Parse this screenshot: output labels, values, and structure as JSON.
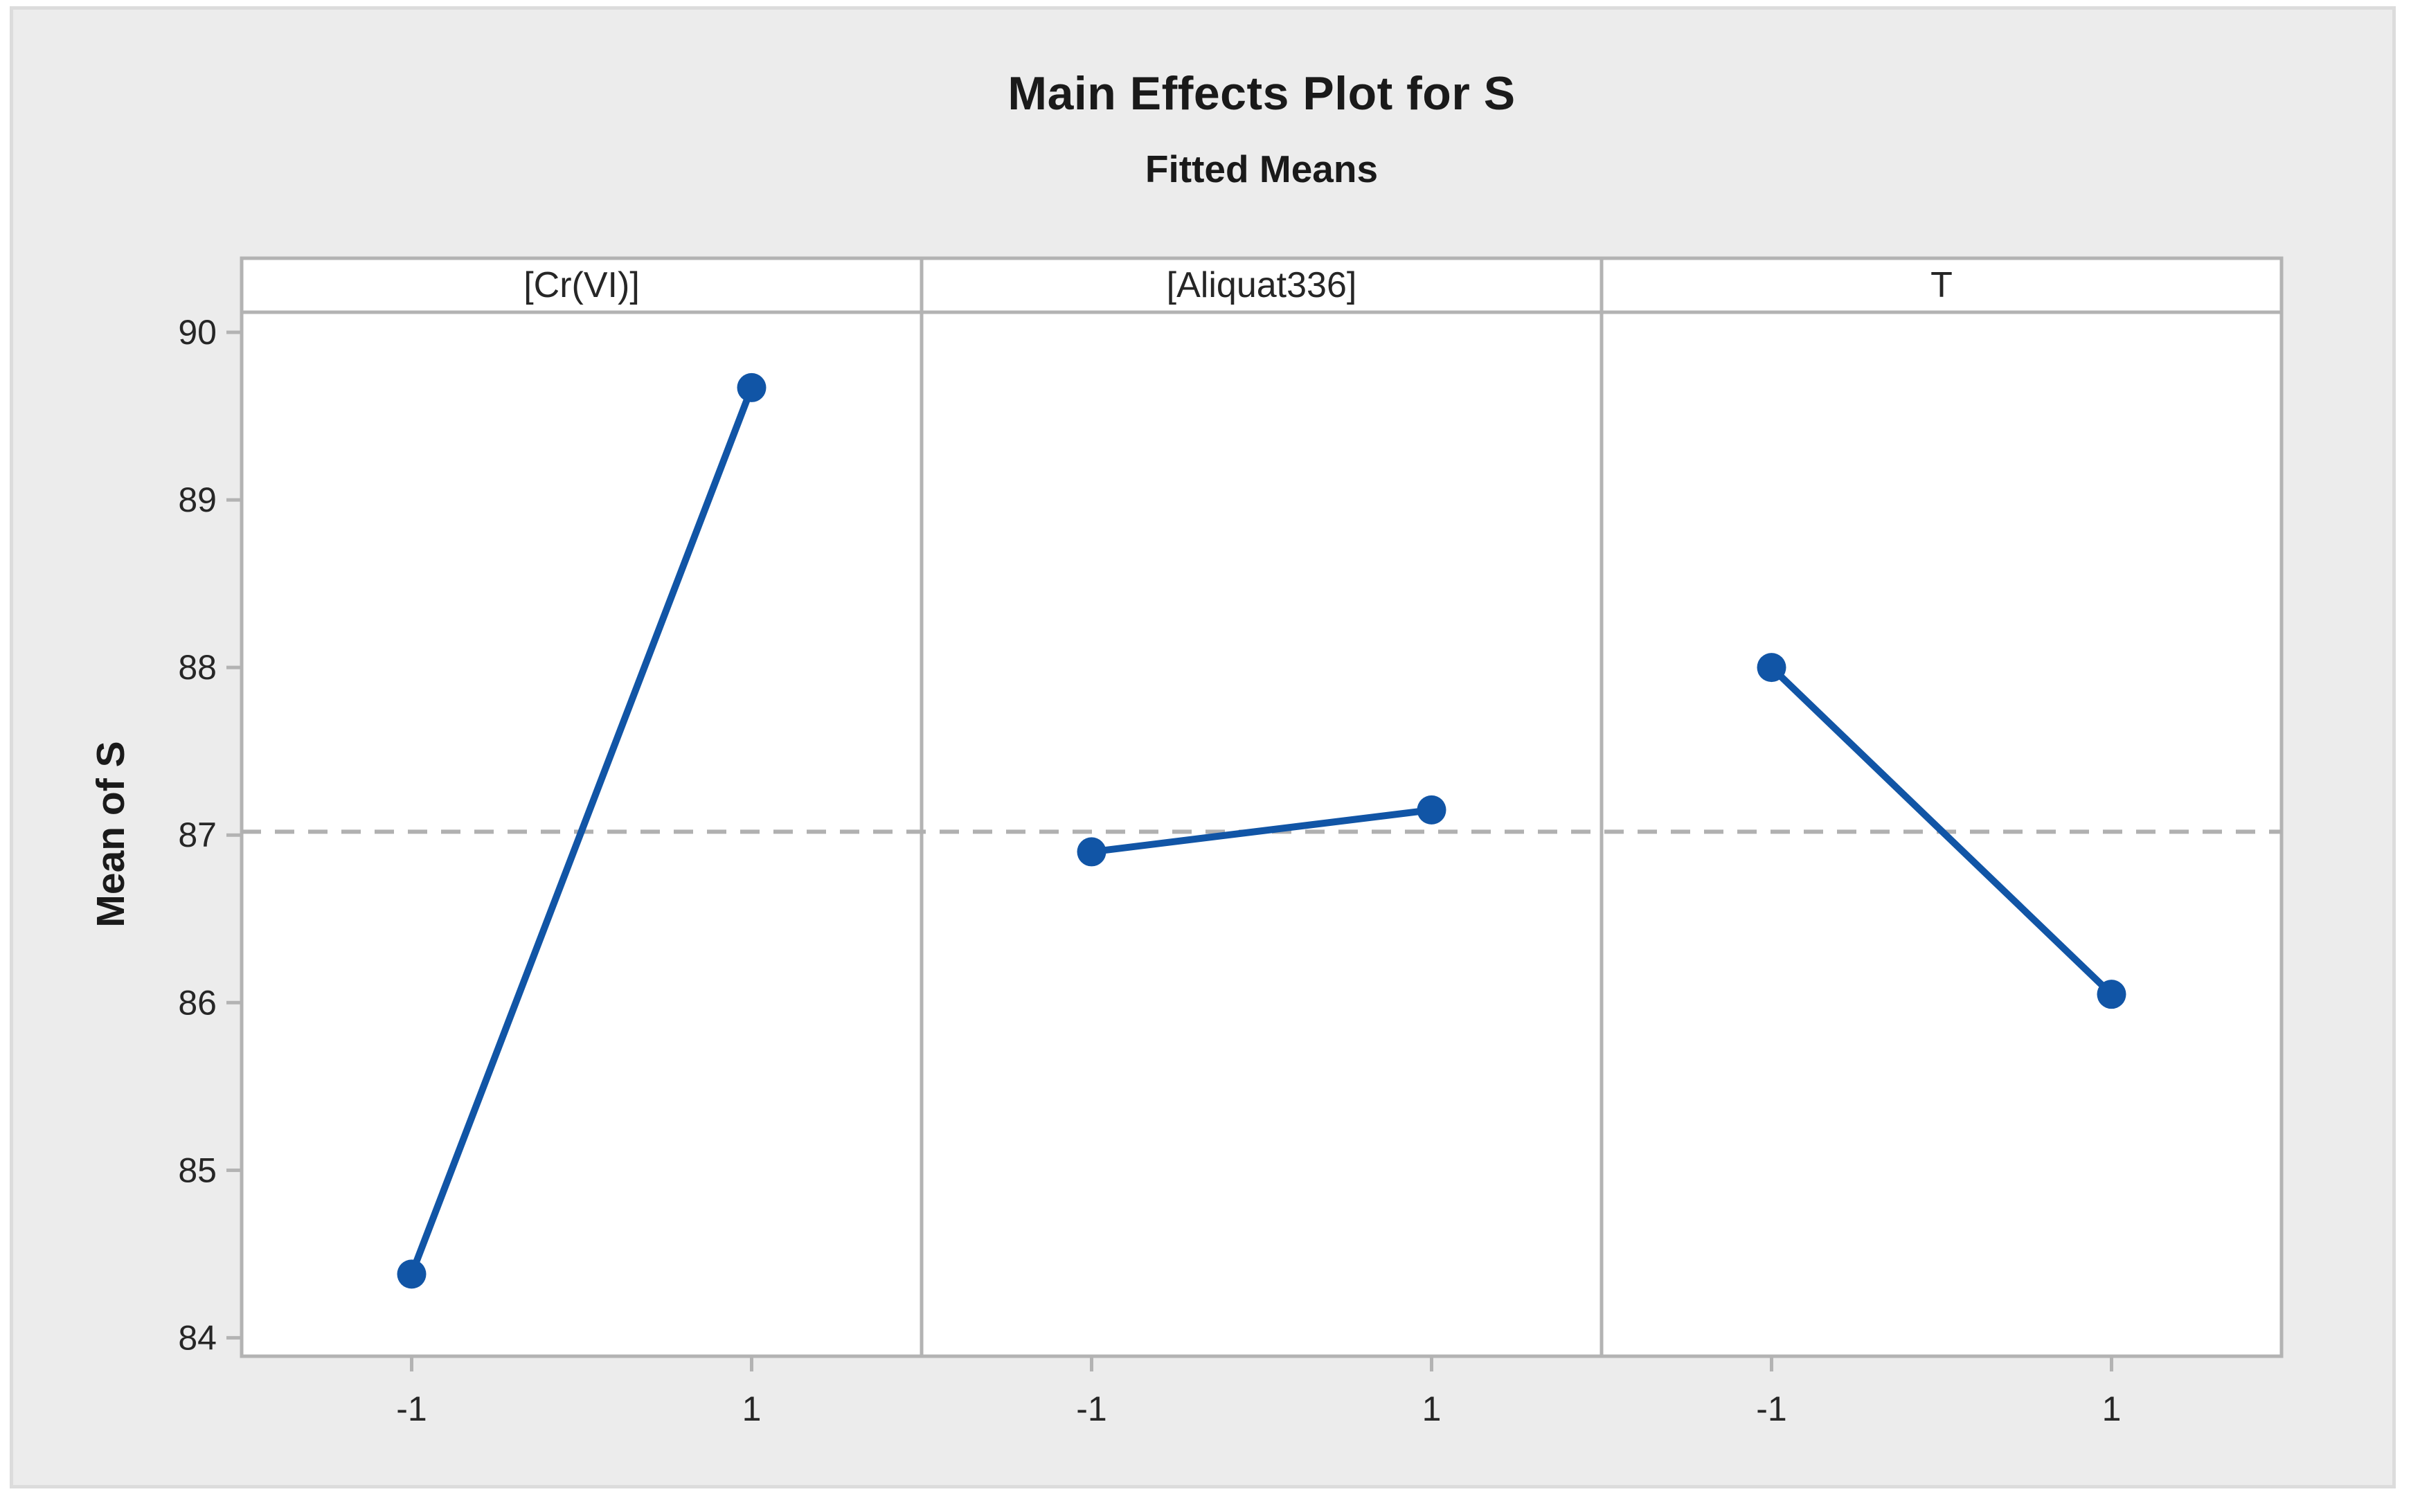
{
  "chart_data": {
    "type": "line",
    "title": "Main Effects Plot for S",
    "subtitle": "Fitted Means",
    "ylabel": "Mean of S",
    "ylim": [
      83.89,
      90.12
    ],
    "yticks": [
      90,
      89,
      88,
      87,
      86,
      85,
      84
    ],
    "xticks": [
      -1,
      1
    ],
    "xtick_labels": [
      "-1",
      "1"
    ],
    "grid": "off",
    "legend": "none",
    "reference_line": {
      "value": 87.02,
      "style": "dashed"
    },
    "panels": [
      {
        "label": "[Cr(VI)]",
        "x": [
          -1,
          1
        ],
        "values": [
          84.38,
          89.67
        ]
      },
      {
        "label": "[Aliquat336]",
        "x": [
          -1,
          1
        ],
        "values": [
          86.9,
          87.15
        ]
      },
      {
        "label": "T",
        "x": [
          -1,
          1
        ],
        "values": [
          88.0,
          86.05
        ]
      }
    ],
    "colors": {
      "series": "#1155a6",
      "frame": "#b3b3b3",
      "reference_line": "#b0b0b0",
      "tick_text": "#262626",
      "canvas": "#ececec",
      "canvas_border": "#dcdcdc",
      "panel_fill": "#ffffff"
    }
  }
}
